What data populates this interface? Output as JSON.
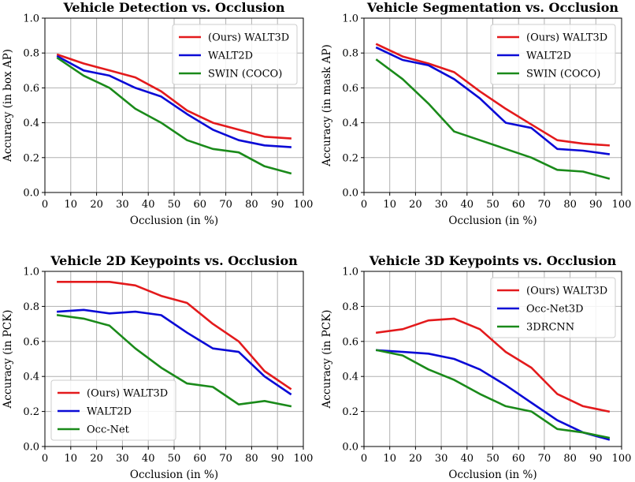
{
  "chart_data": [
    {
      "type": "line",
      "title": "Vehicle Detection vs. Occlusion",
      "xlabel": "Occlusion (in %)",
      "ylabel": "Accuracy (in box AP)",
      "xlim": [
        0,
        100
      ],
      "ylim": [
        0,
        1.0
      ],
      "xticks": [
        "0",
        "10",
        "20",
        "30",
        "40",
        "50",
        "60",
        "70",
        "80",
        "90",
        "100"
      ],
      "yticks": [
        "0.0",
        "0.2",
        "0.4",
        "0.6",
        "0.8",
        "1.0"
      ],
      "grid": true,
      "legend_position": "top-right",
      "x": [
        5,
        15,
        25,
        35,
        45,
        55,
        65,
        75,
        85,
        95
      ],
      "series": [
        {
          "name": "(Ours) WALT3D",
          "color": "#e31a1c",
          "values": [
            0.79,
            0.74,
            0.7,
            0.66,
            0.58,
            0.47,
            0.4,
            0.36,
            0.32,
            0.31
          ]
        },
        {
          "name": "WALT2D",
          "color": "#0a0ad6",
          "values": [
            0.78,
            0.7,
            0.67,
            0.6,
            0.55,
            0.45,
            0.36,
            0.3,
            0.27,
            0.26
          ]
        },
        {
          "name": "SWIN (COCO)",
          "color": "#1a8a1a",
          "values": [
            0.77,
            0.67,
            0.6,
            0.48,
            0.4,
            0.3,
            0.25,
            0.23,
            0.15,
            0.11
          ]
        }
      ]
    },
    {
      "type": "line",
      "title": "Vehicle Segmentation vs. Occlusion",
      "xlabel": "Occlusion (in %)",
      "ylabel": "Accuracy (in mask AP)",
      "xlim": [
        0,
        100
      ],
      "ylim": [
        0,
        1.0
      ],
      "xticks": [
        "0",
        "10",
        "20",
        "30",
        "40",
        "50",
        "60",
        "70",
        "80",
        "90",
        "100"
      ],
      "yticks": [
        "0.0",
        "0.2",
        "0.4",
        "0.6",
        "0.8",
        "1.0"
      ],
      "grid": true,
      "legend_position": "top-right",
      "x": [
        5,
        15,
        25,
        35,
        45,
        55,
        65,
        75,
        85,
        95
      ],
      "series": [
        {
          "name": "(Ours) WALT3D",
          "color": "#e31a1c",
          "values": [
            0.85,
            0.78,
            0.74,
            0.69,
            0.58,
            0.48,
            0.39,
            0.3,
            0.28,
            0.27
          ]
        },
        {
          "name": "WALT2D",
          "color": "#0a0ad6",
          "values": [
            0.83,
            0.76,
            0.73,
            0.65,
            0.54,
            0.4,
            0.37,
            0.25,
            0.24,
            0.22
          ]
        },
        {
          "name": "SWIN (COCO)",
          "color": "#1a8a1a",
          "values": [
            0.76,
            0.65,
            0.51,
            0.35,
            0.3,
            0.25,
            0.2,
            0.13,
            0.12,
            0.08
          ]
        }
      ]
    },
    {
      "type": "line",
      "title": "Vehicle 2D Keypoints vs. Occlusion",
      "xlabel": "Occlusion (in %)",
      "ylabel": "Accuracy (in PCK)",
      "xlim": [
        0,
        100
      ],
      "ylim": [
        0,
        1.0
      ],
      "xticks": [
        "0",
        "10",
        "20",
        "30",
        "40",
        "50",
        "60",
        "70",
        "80",
        "90",
        "100"
      ],
      "yticks": [
        "0.0",
        "0.2",
        "0.4",
        "0.6",
        "0.8",
        "1.0"
      ],
      "grid": true,
      "legend_position": "bottom-left",
      "x": [
        5,
        15,
        25,
        35,
        45,
        55,
        65,
        75,
        85,
        95
      ],
      "series": [
        {
          "name": "(Ours) WALT3D",
          "color": "#e31a1c",
          "values": [
            0.94,
            0.94,
            0.94,
            0.92,
            0.86,
            0.82,
            0.7,
            0.6,
            0.43,
            0.33
          ]
        },
        {
          "name": "WALT2D",
          "color": "#0a0ad6",
          "values": [
            0.77,
            0.78,
            0.76,
            0.77,
            0.75,
            0.65,
            0.56,
            0.54,
            0.4,
            0.3
          ]
        },
        {
          "name": "Occ-Net",
          "color": "#1a8a1a",
          "values": [
            0.75,
            0.73,
            0.69,
            0.56,
            0.45,
            0.36,
            0.34,
            0.24,
            0.26,
            0.23
          ]
        }
      ]
    },
    {
      "type": "line",
      "title": "Vehicle 3D Keypoints vs. Occlusion",
      "xlabel": "Occlusion (in %)",
      "ylabel": "Accuracy (in PCK)",
      "xlim": [
        0,
        100
      ],
      "ylim": [
        0,
        1.0
      ],
      "xticks": [
        "0",
        "10",
        "20",
        "30",
        "40",
        "50",
        "60",
        "70",
        "80",
        "90",
        "100"
      ],
      "yticks": [
        "0.0",
        "0.2",
        "0.4",
        "0.6",
        "0.8",
        "1.0"
      ],
      "grid": true,
      "legend_position": "top-right",
      "x": [
        5,
        15,
        25,
        35,
        45,
        55,
        65,
        75,
        85,
        95
      ],
      "series": [
        {
          "name": "(Ours) WALT3D",
          "color": "#e31a1c",
          "values": [
            0.65,
            0.67,
            0.72,
            0.73,
            0.67,
            0.54,
            0.45,
            0.3,
            0.23,
            0.2
          ]
        },
        {
          "name": "Occ-Net3D",
          "color": "#0a0ad6",
          "values": [
            0.55,
            0.54,
            0.53,
            0.5,
            0.44,
            0.35,
            0.25,
            0.15,
            0.08,
            0.04
          ]
        },
        {
          "name": "3DRCNN",
          "color": "#1a8a1a",
          "values": [
            0.55,
            0.52,
            0.44,
            0.38,
            0.3,
            0.23,
            0.2,
            0.1,
            0.08,
            0.05
          ]
        }
      ]
    }
  ]
}
